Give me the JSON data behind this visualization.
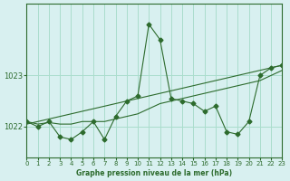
{
  "title": "Graphe pression niveau de la mer (hPa)",
  "background_color": "#d8f0f0",
  "grid_color": "#aaddcc",
  "line_color": "#2d6b2d",
  "marker_color": "#2d6b2d",
  "xlim": [
    0,
    23
  ],
  "ylim": [
    1021.4,
    1024.4
  ],
  "yticks": [
    1022,
    1023
  ],
  "xticks": [
    0,
    1,
    2,
    3,
    4,
    5,
    6,
    7,
    8,
    9,
    10,
    11,
    12,
    13,
    14,
    15,
    16,
    17,
    18,
    19,
    20,
    21,
    22,
    23
  ],
  "series1": {
    "x": [
      0,
      1,
      2,
      3,
      4,
      5,
      6,
      7,
      8,
      9,
      10,
      11,
      12,
      13,
      14,
      15,
      16,
      17,
      18,
      19,
      20,
      21,
      22,
      23
    ],
    "y": [
      1022.1,
      1022.0,
      1022.1,
      1021.8,
      1021.75,
      1021.9,
      1022.1,
      1021.75,
      1022.2,
      1022.5,
      1022.6,
      1024.0,
      1023.7,
      1022.55,
      1022.5,
      1022.45,
      1022.3,
      1022.4,
      1021.9,
      1021.85,
      1022.1,
      1023.0,
      1023.15,
      1023.2
    ]
  },
  "series2": {
    "x": [
      0,
      23
    ],
    "y": [
      1022.05,
      1023.2
    ]
  },
  "series3": {
    "x": [
      0,
      1,
      2,
      3,
      4,
      5,
      6,
      7,
      8,
      9,
      10,
      11,
      12,
      13,
      14,
      15,
      16,
      17,
      18,
      19,
      20,
      21,
      22,
      23
    ],
    "y": [
      1022.1,
      1022.05,
      1022.08,
      1022.05,
      1022.05,
      1022.1,
      1022.1,
      1022.1,
      1022.15,
      1022.2,
      1022.25,
      1022.35,
      1022.45,
      1022.5,
      1022.55,
      1022.6,
      1022.65,
      1022.7,
      1022.75,
      1022.8,
      1022.85,
      1022.9,
      1023.0,
      1023.1
    ]
  }
}
